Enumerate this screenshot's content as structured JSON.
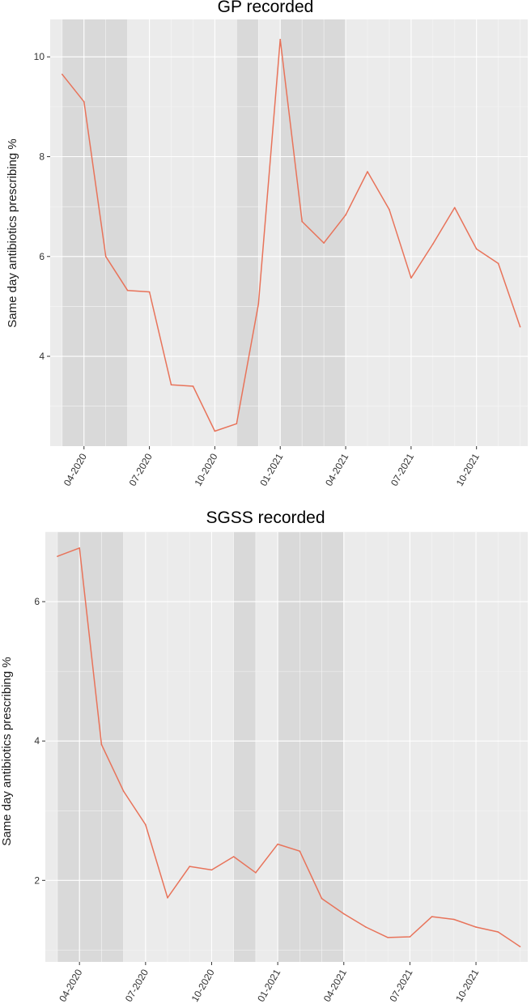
{
  "chart_data": [
    {
      "type": "line",
      "title": "GP recorded",
      "ylabel": "Same day antibiotics prescribing %",
      "xlabel": "",
      "x_tick_labels": [
        "04-2020",
        "07-2020",
        "10-2020",
        "01-2021",
        "04-2021",
        "07-2021",
        "10-2021"
      ],
      "x": [
        "2020-03",
        "2020-04",
        "2020-05",
        "2020-06",
        "2020-07",
        "2020-08",
        "2020-09",
        "2020-10",
        "2020-11",
        "2020-12",
        "2021-01",
        "2021-02",
        "2021-03",
        "2021-04",
        "2021-05",
        "2021-06",
        "2021-07",
        "2021-08",
        "2021-09",
        "2021-10",
        "2021-11",
        "2021-12"
      ],
      "values": [
        9.65,
        9.1,
        6.0,
        5.32,
        5.29,
        3.43,
        3.4,
        2.5,
        2.65,
        5.05,
        10.35,
        6.7,
        6.27,
        6.83,
        7.7,
        6.94,
        5.57,
        6.25,
        6.98,
        6.15,
        5.86,
        4.59
      ],
      "y_ticks": [
        4,
        6,
        8,
        10
      ],
      "ylim": [
        2.2,
        10.75
      ],
      "lockdown_periods": [
        [
          "2020-03",
          "2020-06"
        ],
        [
          "2020-11",
          "2020-12"
        ],
        [
          "2021-01",
          "2021-04"
        ]
      ],
      "line_color": "#e8735a",
      "panel_color": "#ebebeb",
      "shade_color": "#d9d9d9",
      "grid": true
    },
    {
      "type": "line",
      "title": "SGSS recorded",
      "ylabel": "Same day antibiotics prescribing %",
      "xlabel": "",
      "x_tick_labels": [
        "04-2020",
        "07-2020",
        "10-2020",
        "01-2021",
        "04-2021",
        "07-2021",
        "10-2021"
      ],
      "x": [
        "2020-03",
        "2020-04",
        "2020-05",
        "2020-06",
        "2020-07",
        "2020-08",
        "2020-09",
        "2020-10",
        "2020-11",
        "2020-12",
        "2021-01",
        "2021-02",
        "2021-03",
        "2021-04",
        "2021-05",
        "2021-06",
        "2021-07",
        "2021-08",
        "2021-09",
        "2021-10",
        "2021-11",
        "2021-12"
      ],
      "values": [
        6.65,
        6.77,
        3.95,
        3.28,
        2.8,
        1.75,
        2.2,
        2.15,
        2.34,
        2.11,
        2.52,
        2.42,
        1.74,
        1.52,
        1.33,
        1.18,
        1.19,
        1.48,
        1.44,
        1.33,
        1.26,
        1.05
      ],
      "y_ticks": [
        2,
        4,
        6
      ],
      "ylim": [
        0.83,
        7.0
      ],
      "lockdown_periods": [
        [
          "2020-03",
          "2020-06"
        ],
        [
          "2020-11",
          "2020-12"
        ],
        [
          "2021-01",
          "2021-04"
        ]
      ],
      "line_color": "#e8735a",
      "panel_color": "#ebebeb",
      "shade_color": "#d9d9d9",
      "grid": true
    }
  ]
}
